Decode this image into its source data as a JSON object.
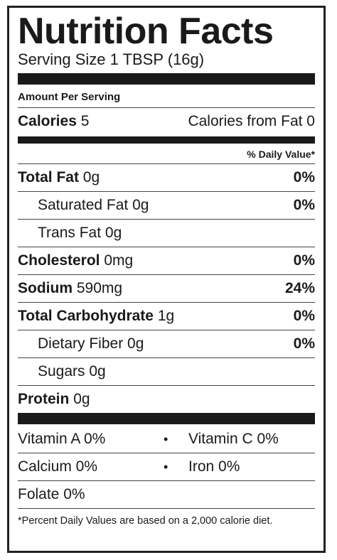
{
  "title": "Nutrition Facts",
  "serving_size": "Serving Size 1 TBSP (16g)",
  "amount_per_serving": "Amount Per Serving",
  "calories": {
    "label": "Calories",
    "value": "5"
  },
  "calories_from_fat": "Calories from Fat 0",
  "daily_value_header": "% Daily Value*",
  "nutrients": {
    "total_fat": {
      "label": "Total Fat",
      "amount": "0g",
      "dv": "0%"
    },
    "saturated_fat": {
      "label": "Saturated Fat 0g",
      "dv": "0%"
    },
    "trans_fat": {
      "label": "Trans Fat 0g"
    },
    "cholesterol": {
      "label": "Cholesterol",
      "amount": "0mg",
      "dv": "0%"
    },
    "sodium": {
      "label": "Sodium",
      "amount": "590mg",
      "dv": "24%"
    },
    "total_carbohydrate": {
      "label": "Total Carbohydrate",
      "amount": "1g",
      "dv": "0%"
    },
    "dietary_fiber": {
      "label": "Dietary Fiber 0g",
      "dv": "0%"
    },
    "sugars": {
      "label": "Sugars 0g"
    },
    "protein": {
      "label": "Protein",
      "amount": "0g"
    }
  },
  "vitamins": {
    "vitamin_a": "Vitamin A 0%",
    "vitamin_c": "Vitamin C 0%",
    "calcium": "Calcium 0%",
    "iron": "Iron 0%",
    "folate": "Folate 0%",
    "bullet": "•"
  },
  "footnote": "*Percent Daily Values are based on a 2,000 calorie diet."
}
